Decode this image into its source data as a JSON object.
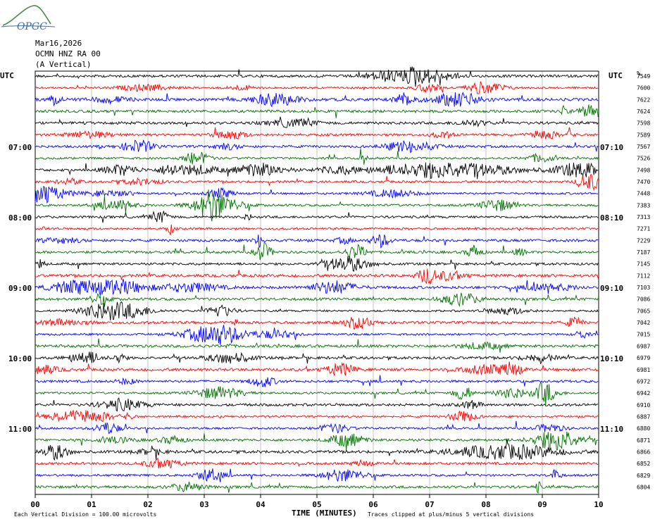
{
  "logo": {
    "text": "OPGC",
    "color": "#3a6fa8",
    "accent": "#4a8a4a"
  },
  "header": {
    "date": "Mar16,2026",
    "station": "OCMN HNZ RA 00",
    "orientation": "(A Vertical)"
  },
  "chart_data": {
    "type": "line",
    "title": "",
    "xlabel": "TIME (MINUTES)",
    "ylabel": "",
    "xlim": [
      0,
      10
    ],
    "x_ticks": [
      "00",
      "01",
      "02",
      "03",
      "04",
      "05",
      "06",
      "07",
      "08",
      "09",
      "10"
    ],
    "left_axis_label": "UTC",
    "right_axis_label": "UTC",
    "right_column_label": "%",
    "left_time_labels": [
      "07:00",
      "08:00",
      "09:00",
      "10:00",
      "11:00"
    ],
    "right_time_labels": [
      "07:10",
      "08:10",
      "09:10",
      "10:10",
      "11:10"
    ],
    "row_values": [
      7549,
      7600,
      7622,
      7624,
      7598,
      7589,
      7567,
      7526,
      7498,
      7470,
      7448,
      7383,
      7313,
      7271,
      7229,
      7187,
      7145,
      7112,
      7103,
      7086,
      7065,
      7042,
      7015,
      6987,
      6979,
      6981,
      6972,
      6942,
      6910,
      6887,
      6880,
      6871,
      6866,
      6852,
      6829,
      6804
    ],
    "trace_colors": [
      "#000000",
      "#ff0000",
      "#0000ff",
      "#007000"
    ],
    "grid": true,
    "footer_left": "Each Vertical Division =  100.00 microvolts",
    "footer_right": "Traces clipped at plus/minus 5 vertical divisions"
  }
}
